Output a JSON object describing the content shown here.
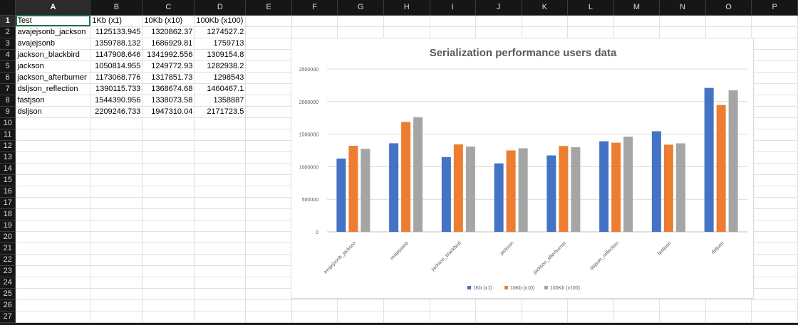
{
  "sheet": {
    "columns": [
      "A",
      "B",
      "C",
      "D",
      "E",
      "F",
      "G",
      "H",
      "I",
      "J",
      "K",
      "L",
      "M",
      "N",
      "O",
      "P"
    ],
    "rows": [
      "1",
      "2",
      "3",
      "4",
      "5",
      "6",
      "7",
      "8",
      "9",
      "10",
      "11",
      "12",
      "13",
      "14",
      "15",
      "16",
      "17",
      "18",
      "19",
      "20",
      "21",
      "22",
      "23",
      "24",
      "25",
      "26",
      "27"
    ],
    "header": [
      "Test",
      "1Kb (x1)",
      "10Kb (x10)",
      "100Kb (x100)"
    ],
    "data": [
      [
        "avajejsonb_jackson",
        "1125133.945",
        "1320862.37",
        "1274527.2"
      ],
      [
        "avajejsonb",
        "1359788.132",
        "1686929.81",
        "1759713"
      ],
      [
        "jackson_blackbird",
        "1147908.646",
        "1341992.556",
        "1309154.8"
      ],
      [
        "jackson",
        "1050814.955",
        "1249772.93",
        "1282938.2"
      ],
      [
        "jackson_afterburner",
        "1173068.776",
        "1317851.73",
        "1298543"
      ],
      [
        "dsljson_reflection",
        "1390115.733",
        "1368674.68",
        "1460467.1"
      ],
      [
        "fastjson",
        "1544390.956",
        "1338073.58",
        "1358887"
      ],
      [
        "dsljson",
        "2209246.733",
        "1947310.04",
        "2171723.5"
      ]
    ]
  },
  "chart_data": {
    "type": "bar",
    "title": "Serialization performance users data",
    "categories": [
      "avajejsonb_jackson",
      "avajejsonb",
      "jackson_blackbird",
      "jackson",
      "jackson_afterburner",
      "dsljson_reflection",
      "fastjson",
      "dsljson"
    ],
    "series": [
      {
        "name": "1Kb (x1)",
        "color": "#4472c4",
        "values": [
          1125133.945,
          1359788.132,
          1147908.646,
          1050814.955,
          1173068.776,
          1390115.733,
          1544390.956,
          2209246.733
        ]
      },
      {
        "name": "10Kb (x10)",
        "color": "#ed7d31",
        "values": [
          1320862.37,
          1686929.81,
          1341992.556,
          1249772.93,
          1317851.73,
          1368674.68,
          1338073.58,
          1947310.04
        ]
      },
      {
        "name": "100Kb (x100)",
        "color": "#a5a5a5",
        "values": [
          1274527.2,
          1759713,
          1309154.8,
          1282938.2,
          1298543,
          1460467.1,
          1358887,
          2171723.5
        ]
      }
    ],
    "yticks": [
      "0",
      "500000",
      "1000000",
      "1500000",
      "2000000",
      "2500000"
    ],
    "ylim": [
      0,
      2500000
    ],
    "grid": true,
    "legend": "bottom"
  }
}
